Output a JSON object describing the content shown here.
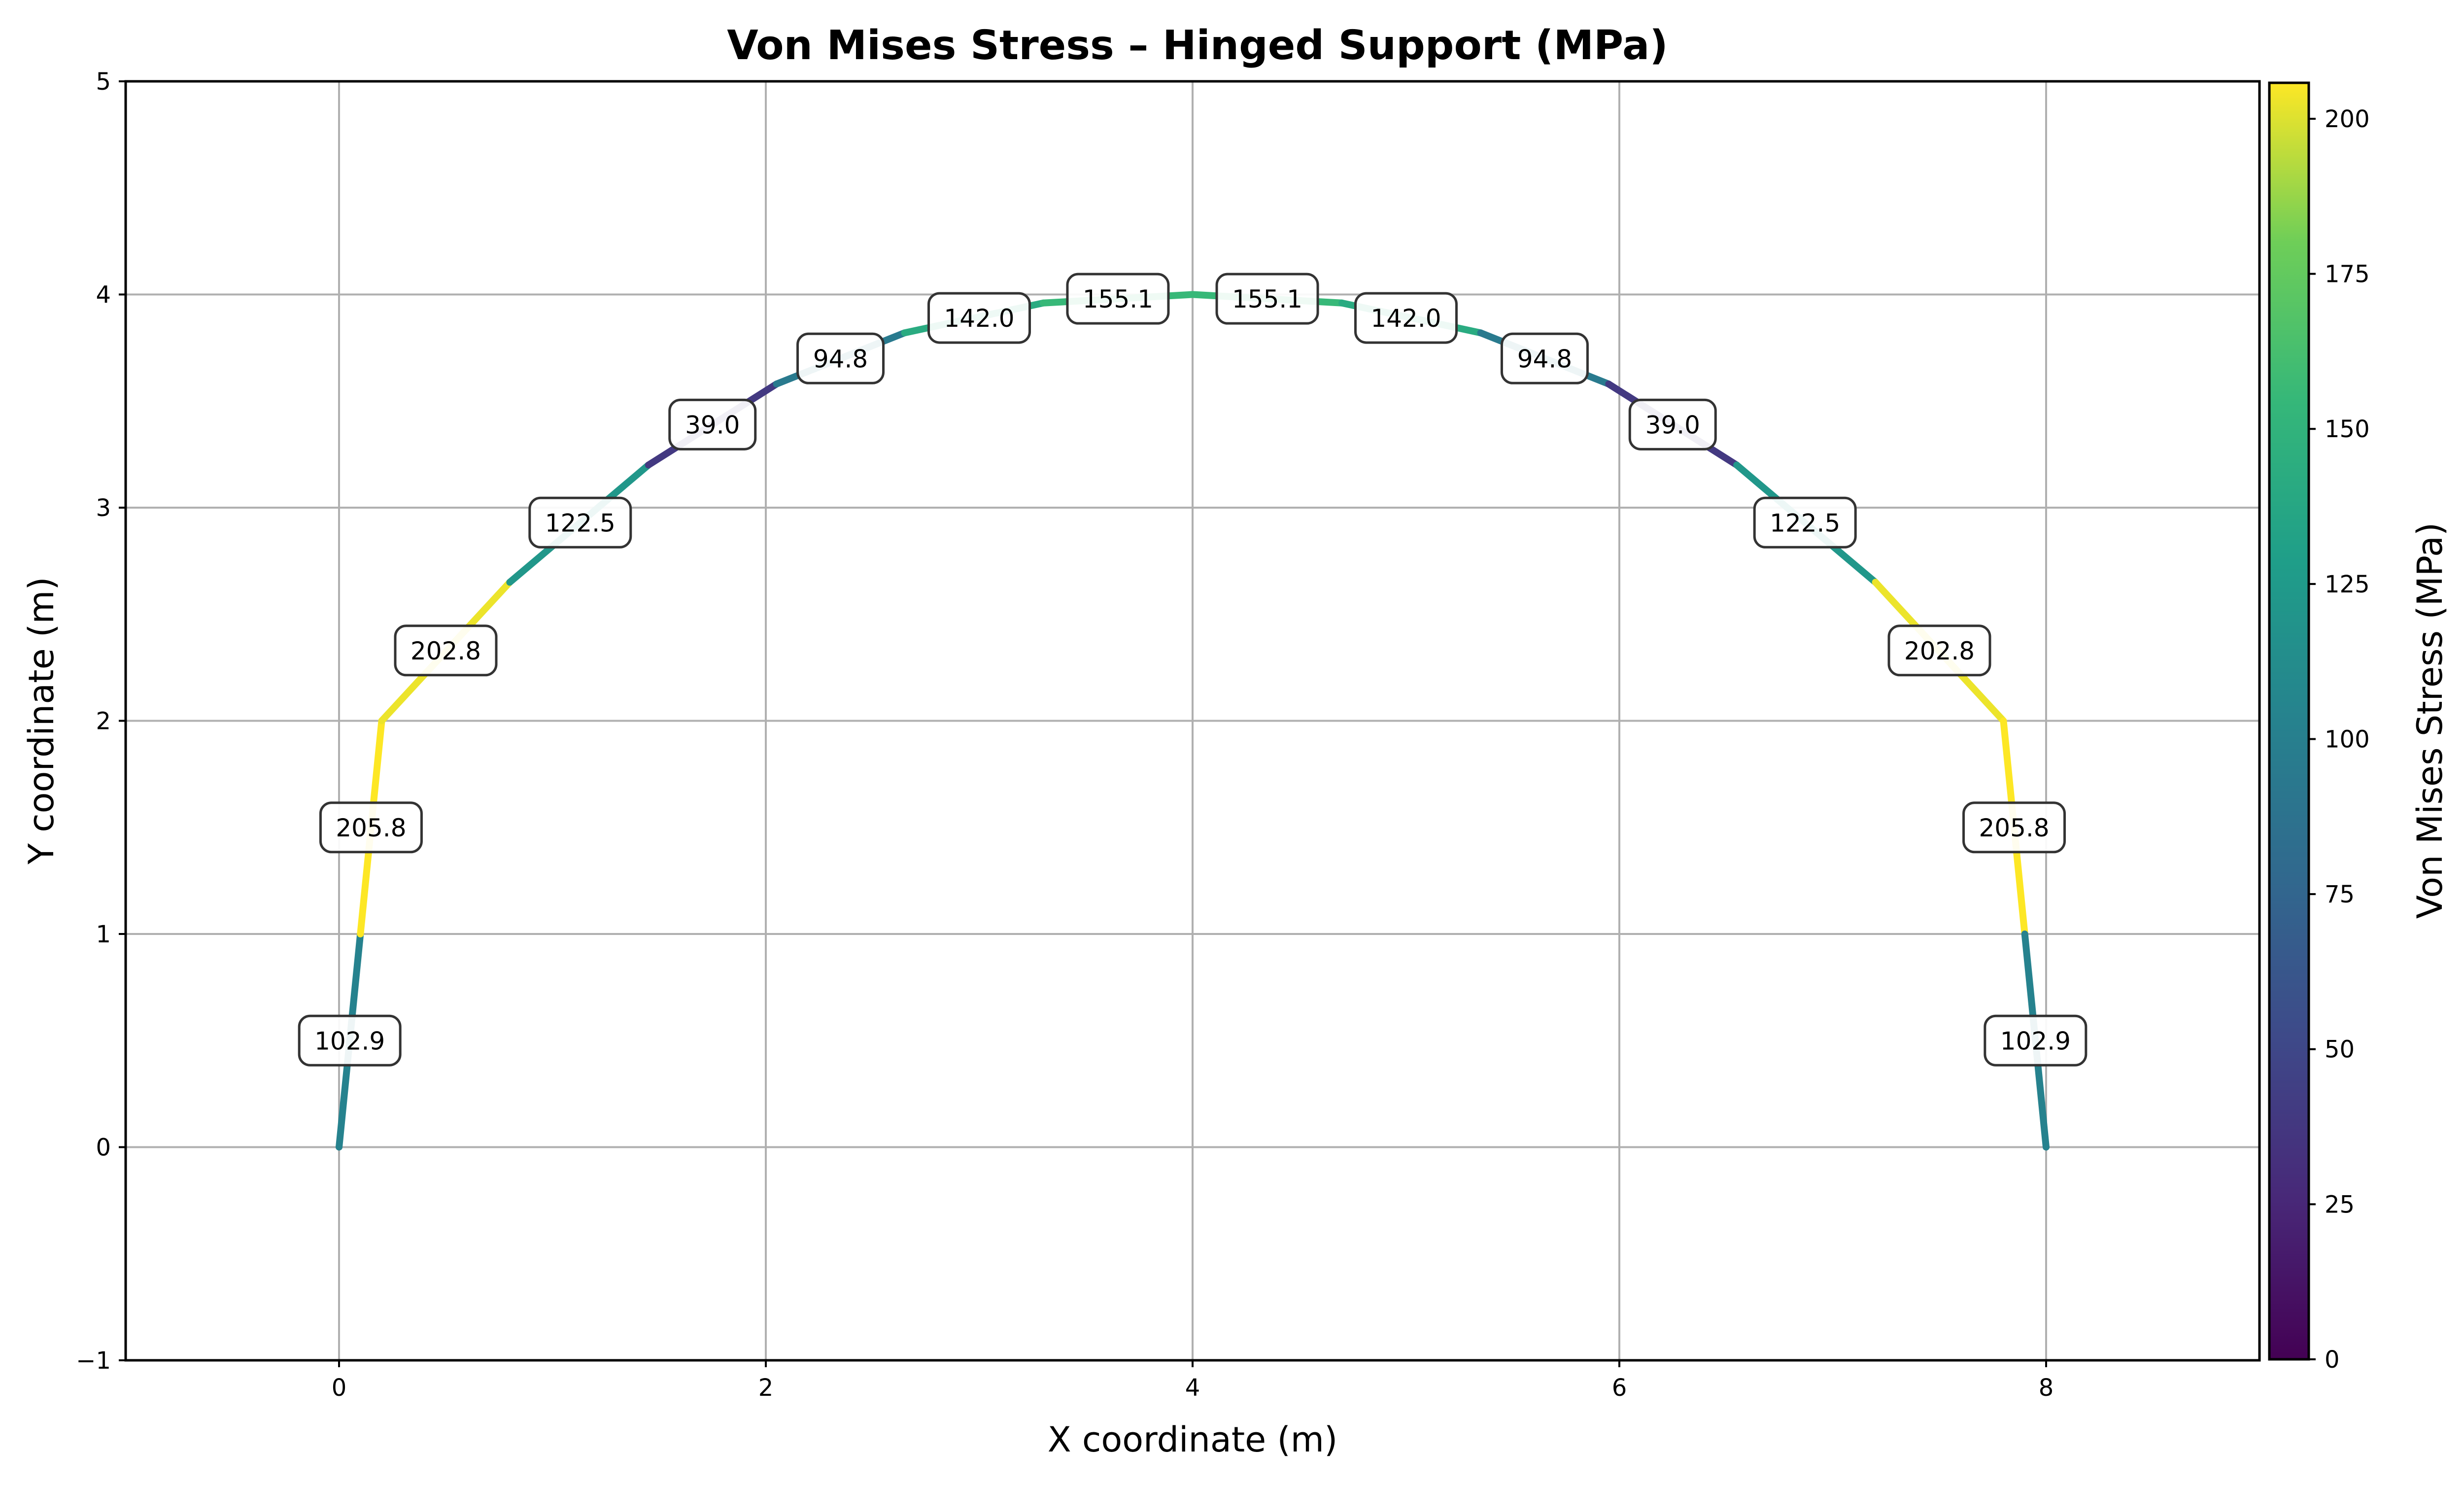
{
  "chart_data": {
    "type": "line",
    "title": "Von Mises Stress – Hinged Support (MPa)",
    "xlabel": "X coordinate (m)",
    "ylabel": "Y coordinate (m)",
    "xlim": [
      -1,
      9
    ],
    "ylim": [
      -1,
      5
    ],
    "xticks": [
      "0",
      "2",
      "4",
      "6",
      "8"
    ],
    "yticks": [
      "−1",
      "0",
      "1",
      "2",
      "3",
      "4",
      "5"
    ],
    "grid": true,
    "colorbar": {
      "label": "Von Mises Stress (MPa)",
      "range": [
        0,
        205.8
      ],
      "ticks": [
        "0",
        "25",
        "50",
        "75",
        "100",
        "125",
        "150",
        "175",
        "200"
      ],
      "colormap": "viridis"
    },
    "series": [
      {
        "values": [
          {
            "x1": 0.0,
            "y1": 0.0,
            "x2": 0.1,
            "y2": 1.0,
            "stress": 102.9
          },
          {
            "x1": 0.1,
            "y1": 1.0,
            "x2": 0.2,
            "y2": 2.0,
            "stress": 205.8
          },
          {
            "x1": 0.2,
            "y1": 2.0,
            "x2": 0.8,
            "y2": 2.65,
            "stress": 202.8
          },
          {
            "x1": 0.8,
            "y1": 2.65,
            "x2": 1.45,
            "y2": 3.2,
            "stress": 122.5
          },
          {
            "x1": 1.45,
            "y1": 3.2,
            "x2": 2.05,
            "y2": 3.58,
            "stress": 39.0
          },
          {
            "x1": 2.05,
            "y1": 3.58,
            "x2": 2.65,
            "y2": 3.82,
            "stress": 94.8
          },
          {
            "x1": 2.65,
            "y1": 3.82,
            "x2": 3.3,
            "y2": 3.96,
            "stress": 142.0
          },
          {
            "x1": 3.3,
            "y1": 3.96,
            "x2": 4.0,
            "y2": 4.0,
            "stress": 155.1
          },
          {
            "x1": 4.0,
            "y1": 4.0,
            "x2": 4.7,
            "y2": 3.96,
            "stress": 155.1
          },
          {
            "x1": 4.7,
            "y1": 3.96,
            "x2": 5.35,
            "y2": 3.82,
            "stress": 142.0
          },
          {
            "x1": 5.35,
            "y1": 3.82,
            "x2": 5.95,
            "y2": 3.58,
            "stress": 94.8
          },
          {
            "x1": 5.95,
            "y1": 3.58,
            "x2": 6.55,
            "y2": 3.2,
            "stress": 39.0
          },
          {
            "x1": 6.55,
            "y1": 3.2,
            "x2": 7.2,
            "y2": 2.65,
            "stress": 122.5
          },
          {
            "x1": 7.2,
            "y1": 2.65,
            "x2": 7.8,
            "y2": 2.0,
            "stress": 202.8
          },
          {
            "x1": 7.8,
            "y1": 2.0,
            "x2": 7.9,
            "y2": 1.0,
            "stress": 205.8
          },
          {
            "x1": 7.9,
            "y1": 1.0,
            "x2": 8.0,
            "y2": 0.0,
            "stress": 102.9
          }
        ]
      }
    ],
    "annotations": [
      {
        "text": "102.9",
        "x": 0.05,
        "y": 0.5
      },
      {
        "text": "205.8",
        "x": 0.15,
        "y": 1.5
      },
      {
        "text": "202.8",
        "x": 0.5,
        "y": 2.33
      },
      {
        "text": "122.5",
        "x": 1.13,
        "y": 2.93
      },
      {
        "text": "39.0",
        "x": 1.75,
        "y": 3.39
      },
      {
        "text": "94.8",
        "x": 2.35,
        "y": 3.7
      },
      {
        "text": "142.0",
        "x": 3.0,
        "y": 3.89
      },
      {
        "text": "155.1",
        "x": 3.65,
        "y": 3.98
      },
      {
        "text": "155.1",
        "x": 4.35,
        "y": 3.98
      },
      {
        "text": "142.0",
        "x": 5.0,
        "y": 3.89
      },
      {
        "text": "94.8",
        "x": 5.65,
        "y": 3.7
      },
      {
        "text": "39.0",
        "x": 6.25,
        "y": 3.39
      },
      {
        "text": "122.5",
        "x": 6.87,
        "y": 2.93
      },
      {
        "text": "202.8",
        "x": 7.5,
        "y": 2.33
      },
      {
        "text": "205.8",
        "x": 7.85,
        "y": 1.5
      },
      {
        "text": "102.9",
        "x": 7.95,
        "y": 0.5
      }
    ]
  }
}
